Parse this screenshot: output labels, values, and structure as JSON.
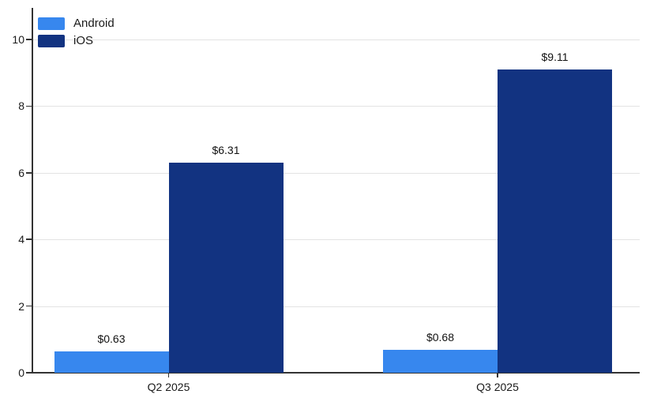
{
  "chart_data": {
    "type": "bar",
    "title": "",
    "categories": [
      "Q2 2025",
      "Q3 2025"
    ],
    "series": [
      {
        "name": "Android",
        "color": "#3787ee",
        "values": [
          0.63,
          0.68
        ],
        "labels": [
          "$0.63",
          "$0.68"
        ]
      },
      {
        "name": "iOS",
        "color": "#123381",
        "values": [
          6.31,
          9.11
        ],
        "labels": [
          "$6.31",
          "$9.11"
        ]
      }
    ],
    "yticks": [
      0,
      2,
      4,
      6,
      8,
      10
    ],
    "ylim": [
      0,
      10
    ],
    "xlabel": "",
    "ylabel": "",
    "grid": "horizontal",
    "legend_position": "top-left",
    "value_prefix": "$"
  },
  "colors": {
    "axis": "#333333",
    "gridline": "#e3e3e3",
    "text": "#1a1a1a",
    "background": "#ffffff"
  }
}
